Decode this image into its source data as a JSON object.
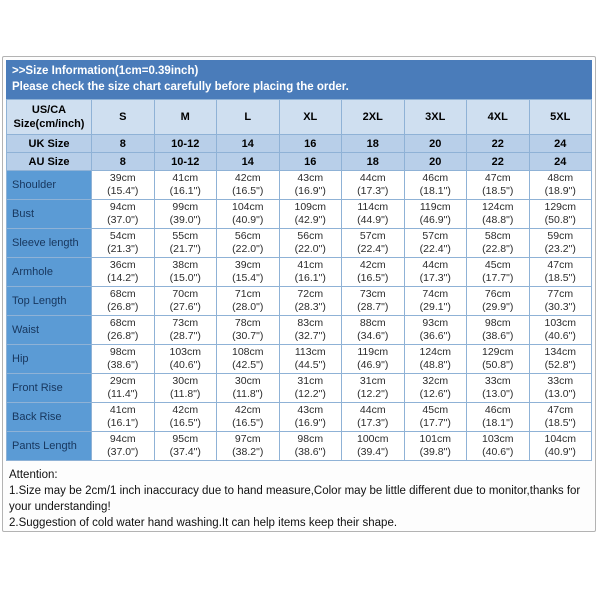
{
  "banner": {
    "line1": ">>Size Information(1cm=0.39inch)",
    "line2": "Please check the size chart carefully before placing the order."
  },
  "table": {
    "corner": {
      "line1": "US/CA",
      "line2": "Size(cm/inch)"
    },
    "sizes": [
      "S",
      "M",
      "L",
      "XL",
      "2XL",
      "3XL",
      "4XL",
      "5XL"
    ],
    "region_rows": [
      {
        "label": "UK Size",
        "values": [
          "8",
          "10-12",
          "14",
          "16",
          "18",
          "20",
          "22",
          "24"
        ]
      },
      {
        "label": "AU Size",
        "values": [
          "8",
          "10-12",
          "14",
          "16",
          "18",
          "20",
          "22",
          "24"
        ]
      }
    ],
    "measurement_rows": [
      {
        "label": "Shoulder",
        "cm": [
          "39cm",
          "41cm",
          "42cm",
          "43cm",
          "44cm",
          "46cm",
          "47cm",
          "48cm"
        ],
        "inch": [
          "(15.4\")",
          "(16.1\")",
          "(16.5\")",
          "(16.9\")",
          "(17.3\")",
          "(18.1\")",
          "(18.5\")",
          "(18.9\")"
        ]
      },
      {
        "label": "Bust",
        "cm": [
          "94cm",
          "99cm",
          "104cm",
          "109cm",
          "114cm",
          "119cm",
          "124cm",
          "129cm"
        ],
        "inch": [
          "(37.0\")",
          "(39.0\")",
          "(40.9\")",
          "(42.9\")",
          "(44.9\")",
          "(46.9\")",
          "(48.8\")",
          "(50.8\")"
        ]
      },
      {
        "label": "Sleeve length",
        "cm": [
          "54cm",
          "55cm",
          "56cm",
          "56cm",
          "57cm",
          "57cm",
          "58cm",
          "59cm"
        ],
        "inch": [
          "(21.3\")",
          "(21.7\")",
          "(22.0\")",
          "(22.0\")",
          "(22.4\")",
          "(22.4\")",
          "(22.8\")",
          "(23.2\")"
        ]
      },
      {
        "label": "Armhole",
        "cm": [
          "36cm",
          "38cm",
          "39cm",
          "41cm",
          "42cm",
          "44cm",
          "45cm",
          "47cm"
        ],
        "inch": [
          "(14.2\")",
          "(15.0\")",
          "(15.4\")",
          "(16.1\")",
          "(16.5\")",
          "(17.3\")",
          "(17.7\")",
          "(18.5\")"
        ]
      },
      {
        "label": "Top Length",
        "cm": [
          "68cm",
          "70cm",
          "71cm",
          "72cm",
          "73cm",
          "74cm",
          "76cm",
          "77cm"
        ],
        "inch": [
          "(26.8\")",
          "(27.6\")",
          "(28.0\")",
          "(28.3\")",
          "(28.7\")",
          "(29.1\")",
          "(29.9\")",
          "(30.3\")"
        ]
      },
      {
        "label": "Waist",
        "cm": [
          "68cm",
          "73cm",
          "78cm",
          "83cm",
          "88cm",
          "93cm",
          "98cm",
          "103cm"
        ],
        "inch": [
          "(26.8\")",
          "(28.7\")",
          "(30.7\")",
          "(32.7\")",
          "(34.6\")",
          "(36.6\")",
          "(38.6\")",
          "(40.6\")"
        ]
      },
      {
        "label": "Hip",
        "cm": [
          "98cm",
          "103cm",
          "108cm",
          "113cm",
          "119cm",
          "124cm",
          "129cm",
          "134cm"
        ],
        "inch": [
          "(38.6\")",
          "(40.6\")",
          "(42.5\")",
          "(44.5\")",
          "(46.9\")",
          "(48.8\")",
          "(50.8\")",
          "(52.8\")"
        ]
      },
      {
        "label": "Front Rise",
        "cm": [
          "29cm",
          "30cm",
          "30cm",
          "31cm",
          "31cm",
          "32cm",
          "33cm",
          "33cm"
        ],
        "inch": [
          "(11.4\")",
          "(11.8\")",
          "(11.8\")",
          "(12.2\")",
          "(12.2\")",
          "(12.6\")",
          "(13.0\")",
          "(13.0\")"
        ]
      },
      {
        "label": "Back Rise",
        "cm": [
          "41cm",
          "42cm",
          "42cm",
          "43cm",
          "44cm",
          "45cm",
          "46cm",
          "47cm"
        ],
        "inch": [
          "(16.1\")",
          "(16.5\")",
          "(16.5\")",
          "(16.9\")",
          "(17.3\")",
          "(17.7\")",
          "(18.1\")",
          "(18.5\")"
        ]
      },
      {
        "label": "Pants Length",
        "cm": [
          "94cm",
          "95cm",
          "97cm",
          "98cm",
          "100cm",
          "101cm",
          "103cm",
          "104cm"
        ],
        "inch": [
          "(37.0\")",
          "(37.4\")",
          "(38.2\")",
          "(38.6\")",
          "(39.4\")",
          "(39.8\")",
          "(40.6\")",
          "(40.9\")"
        ]
      }
    ]
  },
  "attention": {
    "title": "Attention:",
    "lines": [
      "1.Size may be 2cm/1 inch inaccuracy due to hand measure,Color may be little different due to monitor,thanks for your understanding!",
      "2.Suggestion of cold water hand washing.It can help items keep their shape."
    ]
  },
  "colors": {
    "banner_bg": "#4a7cba",
    "banner_text": "#ffffff",
    "header_bg": "#cfdff0",
    "region_row_bg": "#b8cfe9",
    "label_col_bg": "#5b9bd5",
    "label_text": "#17365d",
    "grid_line": "#8fb2d6",
    "grid_line_dark": "#6f9dc8",
    "frame_border": "#b3b3b3"
  }
}
